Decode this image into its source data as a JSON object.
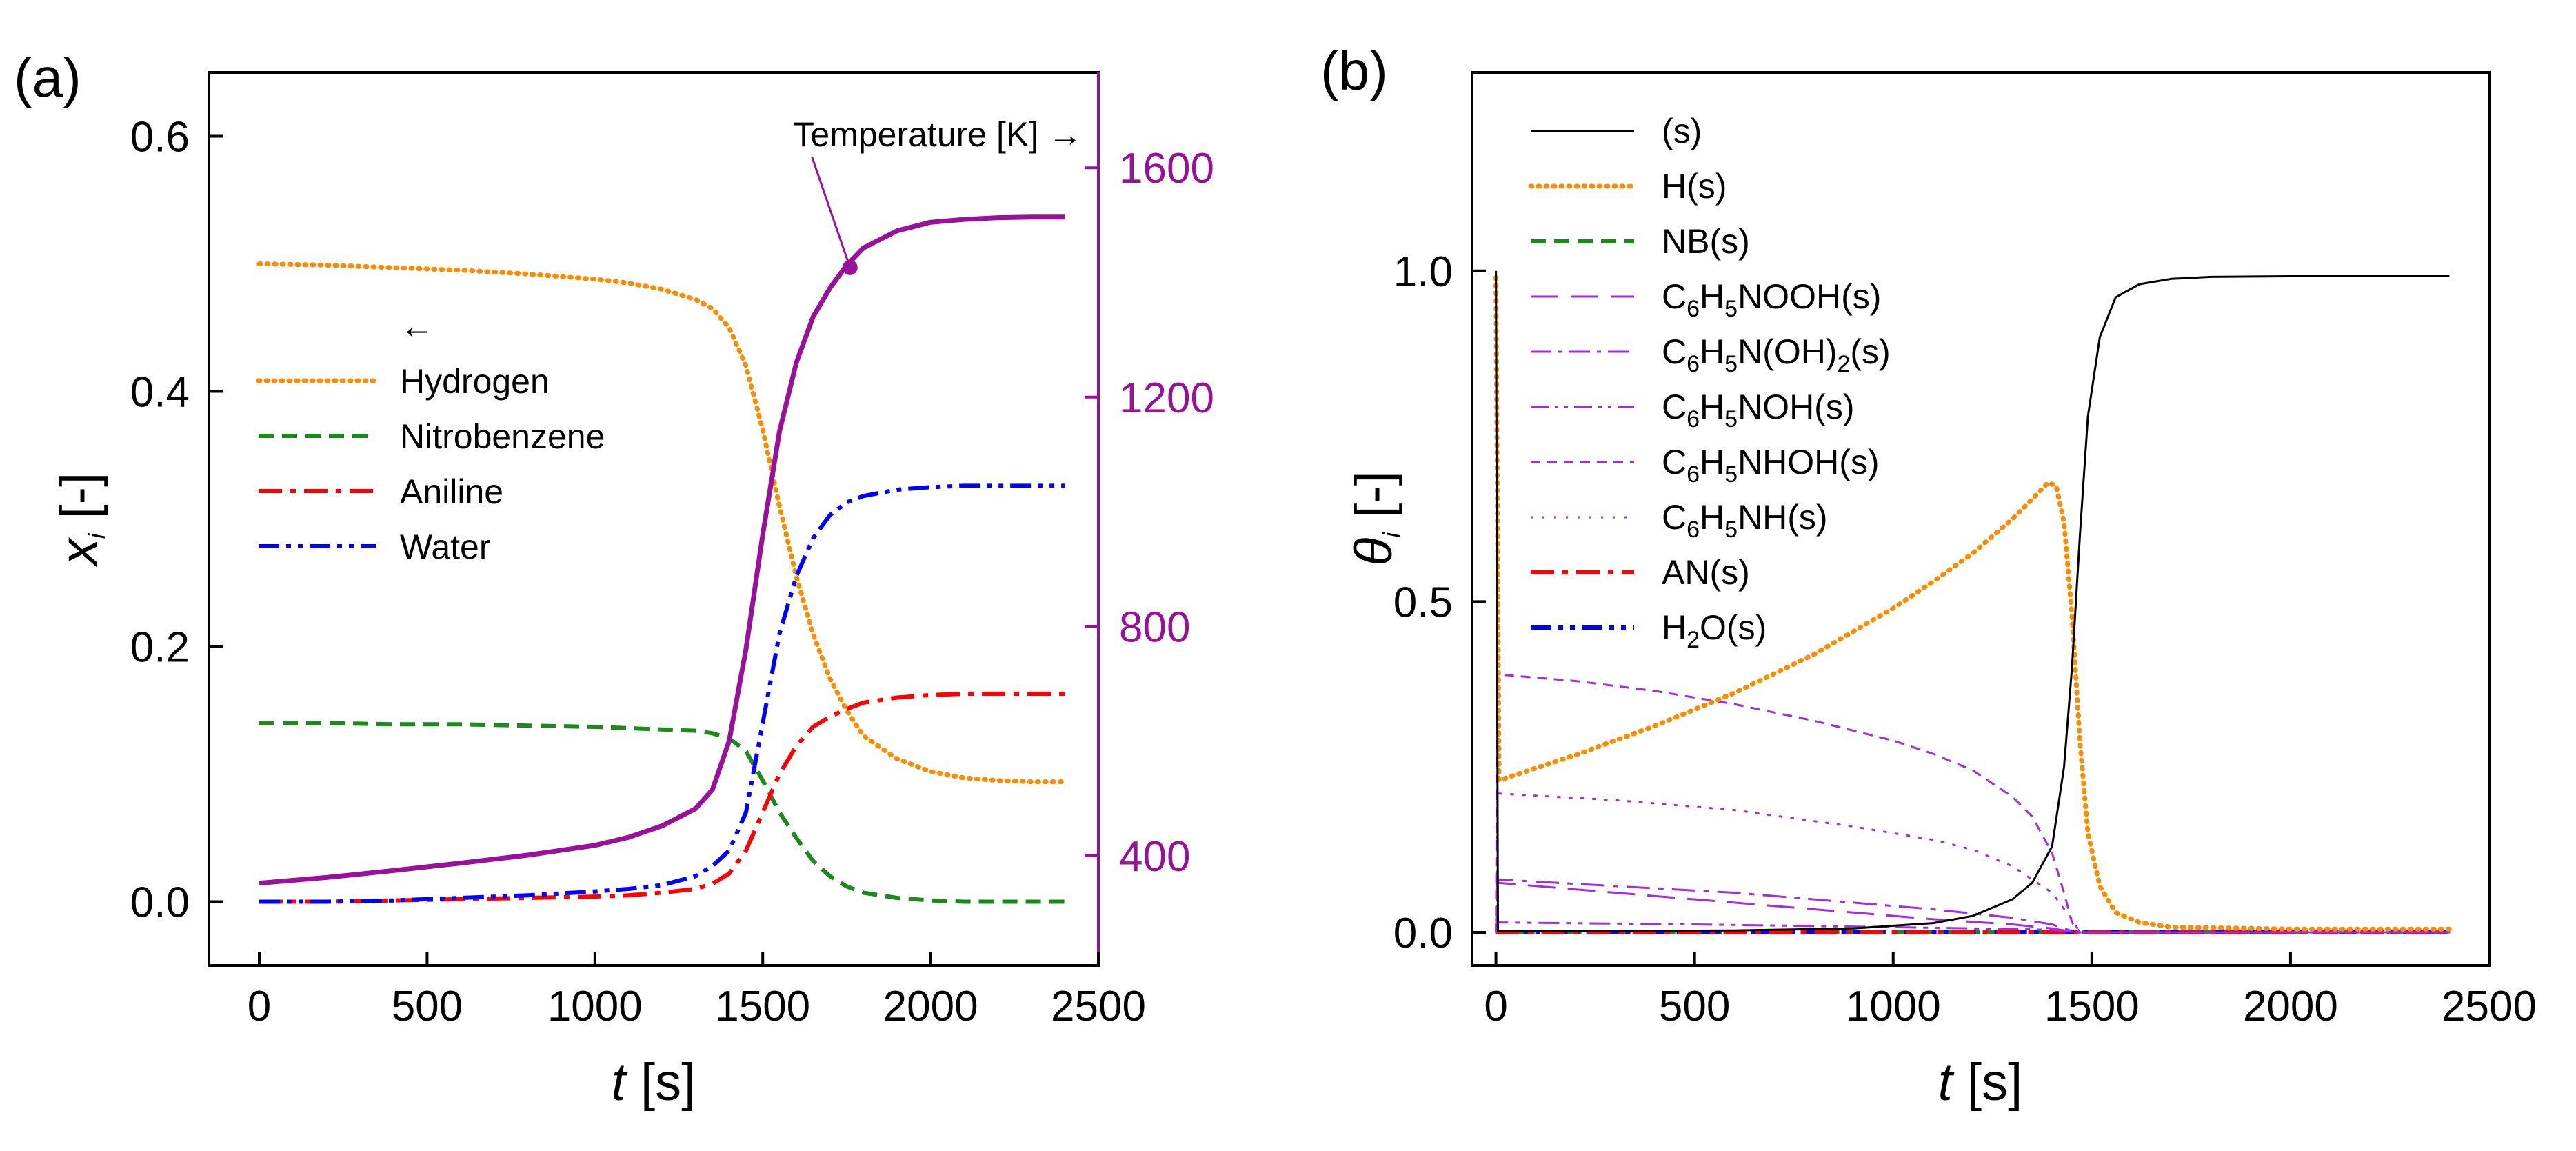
{
  "chart_data": [
    {
      "panel_label": "(a)",
      "type": "line",
      "xlabel": "t [s]",
      "ylabel": "x_i [-]",
      "y2label": "Temperature [K] →",
      "xlim": [
        -150,
        2500
      ],
      "ylim": [
        -0.05,
        0.65
      ],
      "y2lim": [
        208.5,
        1766.3
      ],
      "xticks": [
        0,
        500,
        1000,
        1500,
        2000,
        2500
      ],
      "yticks": [
        0.0,
        0.2,
        0.4,
        0.6
      ],
      "y2ticks": [
        400,
        800,
        1200,
        1600
      ],
      "legend_title": "←",
      "legend_position": "upper-left",
      "x": [
        0,
        200,
        400,
        600,
        800,
        1000,
        1100,
        1200,
        1300,
        1350,
        1400,
        1450,
        1500,
        1550,
        1600,
        1650,
        1700,
        1750,
        1800,
        1900,
        2000,
        2100,
        2200,
        2300,
        2400
      ],
      "series": [
        {
          "name": "Hydrogen",
          "color": "#ff8c00",
          "style": "dotted",
          "axis": "left",
          "values": [
            0.5,
            0.499,
            0.497,
            0.495,
            0.492,
            0.488,
            0.485,
            0.48,
            0.472,
            0.465,
            0.45,
            0.42,
            0.37,
            0.31,
            0.255,
            0.21,
            0.175,
            0.15,
            0.13,
            0.112,
            0.102,
            0.097,
            0.095,
            0.094,
            0.094
          ]
        },
        {
          "name": "Nitrobenzene",
          "color": "#1a8a1a",
          "style": "dashed",
          "axis": "left",
          "values": [
            0.14,
            0.14,
            0.139,
            0.139,
            0.138,
            0.137,
            0.136,
            0.135,
            0.134,
            0.132,
            0.128,
            0.118,
            0.095,
            0.07,
            0.05,
            0.032,
            0.02,
            0.012,
            0.007,
            0.003,
            0.001,
            0.0,
            0.0,
            0.0,
            0.0
          ]
        },
        {
          "name": "Aniline",
          "color": "#ff0000",
          "style": "dashdot",
          "axis": "left",
          "values": [
            0.0,
            0.0,
            0.001,
            0.002,
            0.003,
            0.004,
            0.005,
            0.007,
            0.01,
            0.014,
            0.022,
            0.04,
            0.07,
            0.1,
            0.122,
            0.137,
            0.145,
            0.151,
            0.156,
            0.16,
            0.162,
            0.163,
            0.163,
            0.163,
            0.163
          ]
        },
        {
          "name": "Water",
          "color": "#0000ff",
          "style": "dashdotdot",
          "axis": "left",
          "values": [
            0.0,
            0.0,
            0.001,
            0.003,
            0.005,
            0.008,
            0.01,
            0.013,
            0.02,
            0.028,
            0.04,
            0.07,
            0.14,
            0.21,
            0.255,
            0.285,
            0.303,
            0.313,
            0.318,
            0.323,
            0.325,
            0.326,
            0.326,
            0.326,
            0.326
          ]
        },
        {
          "name": "Temperature",
          "color": "#99109a",
          "style": "solid",
          "axis": "right",
          "values": [
            352,
            362,
            374,
            387,
            401,
            418,
            432,
            452,
            482,
            515,
            600,
            760,
            960,
            1140,
            1260,
            1340,
            1390,
            1430,
            1460,
            1490,
            1505,
            1510,
            1513,
            1514,
            1514
          ]
        }
      ],
      "annotation": {
        "text": "Temperature [K] →",
        "marker_x": 1760,
        "marker_y2": 1426
      }
    },
    {
      "panel_label": "(b)",
      "type": "line",
      "xlabel": "t [s]",
      "ylabel": "θ_i [-]",
      "xlim": [
        -60,
        2500
      ],
      "ylim": [
        -0.05,
        1.3
      ],
      "xticks": [
        0,
        500,
        1000,
        1500,
        2000,
        2500
      ],
      "yticks": [
        0.0,
        0.5,
        1.0
      ],
      "legend_position": "upper-left",
      "series": [
        {
          "name": "(s)",
          "legend": {
            "main": "(s)"
          },
          "color": "#000000",
          "style": "solid",
          "points": [
            [
              0,
              1.0
            ],
            [
              5,
              0.002
            ],
            [
              200,
              0.002
            ],
            [
              600,
              0.003
            ],
            [
              900,
              0.006
            ],
            [
              1100,
              0.014
            ],
            [
              1200,
              0.025
            ],
            [
              1300,
              0.05
            ],
            [
              1350,
              0.075
            ],
            [
              1400,
              0.13
            ],
            [
              1430,
              0.25
            ],
            [
              1450,
              0.4
            ],
            [
              1470,
              0.6
            ],
            [
              1490,
              0.78
            ],
            [
              1520,
              0.9
            ],
            [
              1560,
              0.96
            ],
            [
              1620,
              0.98
            ],
            [
              1700,
              0.988
            ],
            [
              1800,
              0.991
            ],
            [
              2000,
              0.992
            ],
            [
              2400,
              0.992
            ]
          ]
        },
        {
          "name": "H(s)",
          "legend": {
            "main": "H(s)"
          },
          "color": "#ff8c00",
          "style": "dotted",
          "points": [
            [
              0,
              0.99
            ],
            [
              8,
              0.23
            ],
            [
              200,
              0.268
            ],
            [
              400,
              0.312
            ],
            [
              600,
              0.362
            ],
            [
              800,
              0.42
            ],
            [
              1000,
              0.49
            ],
            [
              1100,
              0.53
            ],
            [
              1200,
              0.573
            ],
            [
              1300,
              0.625
            ],
            [
              1350,
              0.655
            ],
            [
              1390,
              0.68
            ],
            [
              1410,
              0.675
            ],
            [
              1430,
              0.62
            ],
            [
              1450,
              0.48
            ],
            [
              1470,
              0.29
            ],
            [
              1490,
              0.15
            ],
            [
              1520,
              0.07
            ],
            [
              1560,
              0.03
            ],
            [
              1620,
              0.015
            ],
            [
              1700,
              0.008
            ],
            [
              2000,
              0.005
            ],
            [
              2400,
              0.005
            ]
          ]
        },
        {
          "name": "NB(s)",
          "legend": {
            "main": "NB(s)"
          },
          "color": "#1a8a1a",
          "style": "dashed",
          "points": [
            [
              0,
              0.0
            ],
            [
              2400,
              0.0
            ]
          ]
        },
        {
          "name": "C6H5NOOH(s)",
          "legend": {
            "main": "C",
            "s1": "6",
            "m2": "H",
            "s2": "5",
            "m3": "NOOH(s)"
          },
          "color": "#a52ae6",
          "style": "longdash",
          "points": [
            [
              0,
              0.0
            ],
            [
              4,
              0.075
            ],
            [
              300,
              0.06
            ],
            [
              600,
              0.045
            ],
            [
              900,
              0.03
            ],
            [
              1100,
              0.02
            ],
            [
              1300,
              0.012
            ],
            [
              1400,
              0.006
            ],
            [
              1460,
              0.0
            ],
            [
              2400,
              0.0
            ]
          ]
        },
        {
          "name": "C6H5N(OH)2(s)",
          "legend": {
            "main": "C",
            "s1": "6",
            "m2": "H",
            "s2": "5",
            "m3": "N(OH)",
            "s3": "2",
            "m4": "(s)"
          },
          "color": "#a52ae6",
          "style": "dashdot",
          "points": [
            [
              0,
              0.0
            ],
            [
              4,
              0.08
            ],
            [
              300,
              0.07
            ],
            [
              600,
              0.06
            ],
            [
              900,
              0.045
            ],
            [
              1100,
              0.035
            ],
            [
              1300,
              0.022
            ],
            [
              1400,
              0.012
            ],
            [
              1460,
              0.0
            ],
            [
              2400,
              0.0
            ]
          ]
        },
        {
          "name": "C6H5NOH(s)",
          "legend": {
            "main": "C",
            "s1": "6",
            "m2": "H",
            "s2": "5",
            "m3": "NOH(s)"
          },
          "color": "#a52ae6",
          "style": "dashdotdot",
          "points": [
            [
              0,
              0.0
            ],
            [
              4,
              0.015
            ],
            [
              500,
              0.012
            ],
            [
              1000,
              0.008
            ],
            [
              1400,
              0.004
            ],
            [
              1460,
              0.0
            ],
            [
              2400,
              0.0
            ]
          ]
        },
        {
          "name": "C6H5NHOH(s)",
          "legend": {
            "main": "C",
            "s1": "6",
            "m2": "H",
            "s2": "5",
            "m3": "NHOH(s)"
          },
          "color": "#a52ae6",
          "style": "shortdash",
          "points": [
            [
              0,
              0.0
            ],
            [
              4,
              0.39
            ],
            [
              200,
              0.38
            ],
            [
              400,
              0.365
            ],
            [
              600,
              0.345
            ],
            [
              800,
              0.32
            ],
            [
              1000,
              0.29
            ],
            [
              1100,
              0.27
            ],
            [
              1200,
              0.245
            ],
            [
              1300,
              0.205
            ],
            [
              1350,
              0.175
            ],
            [
              1400,
              0.12
            ],
            [
              1430,
              0.06
            ],
            [
              1450,
              0.015
            ],
            [
              1470,
              0.0
            ],
            [
              2400,
              0.0
            ]
          ]
        },
        {
          "name": "C6H5NH(s)",
          "legend": {
            "main": "C",
            "s1": "6",
            "m2": "H",
            "s2": "5",
            "m3": "NH(s)"
          },
          "color": "#a52ae6",
          "style": "dotted",
          "points": [
            [
              0,
              0.0
            ],
            [
              4,
              0.21
            ],
            [
              300,
              0.2
            ],
            [
              600,
              0.185
            ],
            [
              900,
              0.16
            ],
            [
              1100,
              0.14
            ],
            [
              1200,
              0.125
            ],
            [
              1300,
              0.1
            ],
            [
              1400,
              0.06
            ],
            [
              1450,
              0.02
            ],
            [
              1470,
              0.0
            ],
            [
              2400,
              0.0
            ]
          ]
        },
        {
          "name": "AN(s)",
          "legend": {
            "main": "AN(s)"
          },
          "color": "#ff0000",
          "style": "dashdot",
          "points": [
            [
              0,
              0.0
            ],
            [
              2400,
              0.0
            ]
          ]
        },
        {
          "name": "H2O(s)",
          "legend": {
            "main": "H",
            "s1": "2",
            "m2": "O(s)"
          },
          "color": "#0000ff",
          "style": "dashdotdot",
          "points": [
            [
              0,
              0.0
            ],
            [
              2400,
              0.0
            ]
          ]
        }
      ]
    }
  ]
}
